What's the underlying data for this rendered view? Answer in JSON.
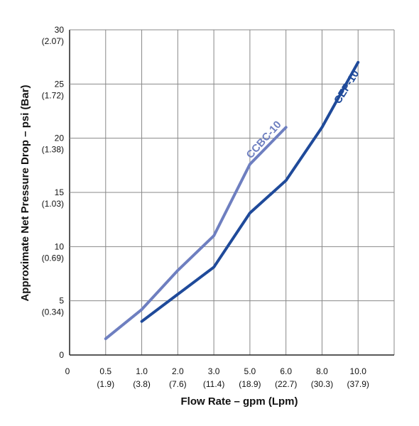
{
  "chart_data": {
    "type": "line",
    "xlabel": "Flow Rate – gpm (Lpm)",
    "ylabel": "Approximate Net Pressure Drop – psi (Bar)",
    "x_origin_label": "0",
    "x_ticks": [
      {
        "label": "0.5",
        "sub": "(1.9)"
      },
      {
        "label": "1.0",
        "sub": "(3.8)"
      },
      {
        "label": "2.0",
        "sub": "(7.6)"
      },
      {
        "label": "3.0",
        "sub": "(11.4)"
      },
      {
        "label": "5.0",
        "sub": "(18.9)"
      },
      {
        "label": "6.0",
        "sub": "(22.7)"
      },
      {
        "label": "8.0",
        "sub": "(30.3)"
      },
      {
        "label": "10.0",
        "sub": "(37.9)"
      }
    ],
    "y_ticks": [
      {
        "value": 0,
        "label": "0",
        "sub": ""
      },
      {
        "value": 5,
        "label": "5",
        "sub": "(0.34)"
      },
      {
        "value": 10,
        "label": "10",
        "sub": "(0.69)"
      },
      {
        "value": 15,
        "label": "15",
        "sub": "(1.03)"
      },
      {
        "value": 20,
        "label": "20",
        "sub": "(1.38)"
      },
      {
        "value": 25,
        "label": "25",
        "sub": "(1.72)"
      },
      {
        "value": 30,
        "label": "30",
        "sub": "(2.07)"
      }
    ],
    "ylim": [
      0,
      30
    ],
    "grid": true,
    "series": [
      {
        "name": "CCBC-10",
        "color": "#6e7fc0",
        "x": [
          0.5,
          1.0,
          2.0,
          3.0,
          5.0,
          6.0
        ],
        "y": [
          1.5,
          4.2,
          7.8,
          11.0,
          17.6,
          21.0
        ]
      },
      {
        "name": "CEP-10",
        "color": "#1f4a9a",
        "x": [
          1.0,
          2.0,
          3.0,
          5.0,
          6.0,
          8.0,
          10.0
        ],
        "y": [
          3.1,
          5.6,
          8.1,
          13.1,
          16.1,
          21.0,
          27.0
        ]
      }
    ]
  }
}
